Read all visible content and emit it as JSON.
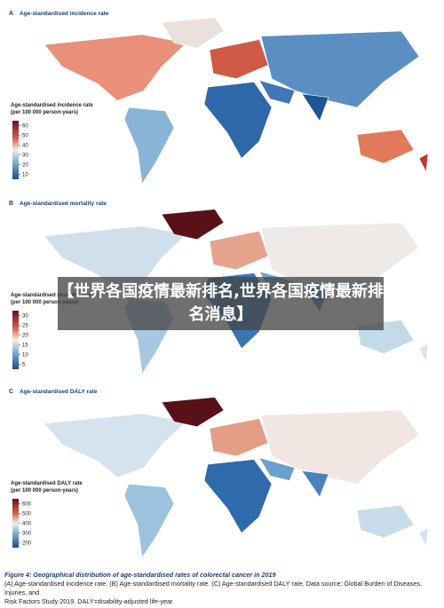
{
  "banner": "【世界各国疫情最新排名,世界各国疫情最新排名消息】",
  "panels": [
    {
      "label": "A",
      "title": "Age-standardised incidence rate",
      "legend_title": [
        "Age-standardised incidence rate",
        "(per 100 000 person-years)"
      ],
      "ticks": [
        60,
        50,
        40,
        30,
        20,
        10
      ]
    },
    {
      "label": "B",
      "title": "Age-standardised mortality rate",
      "legend_title": [
        "Age-standardised mortality rate",
        "(per 100 000 person-years)"
      ],
      "ticks": [
        30,
        25,
        20,
        15,
        10,
        5
      ]
    },
    {
      "label": "C",
      "title": "Age-standardised DALY rate",
      "legend_title": [
        "Age-standardised DALY rate",
        "(per 100 000 person-years)"
      ],
      "ticks": [
        600,
        500,
        400,
        300,
        200
      ]
    }
  ],
  "caption": {
    "title": "Figure 4: Geographical distribution of age-standardised rates of colorectal cancer in 2019",
    "lines": [
      "(A) Age-standardised incidence rate. (B) Age-standardised mortality rate. (C) Age-standardised DALY rate. Data source: Global Burden of Diseases, Injuries, and",
      "Risk Factors Study 2019. DALY=disability-adjusted life-year."
    ]
  }
}
